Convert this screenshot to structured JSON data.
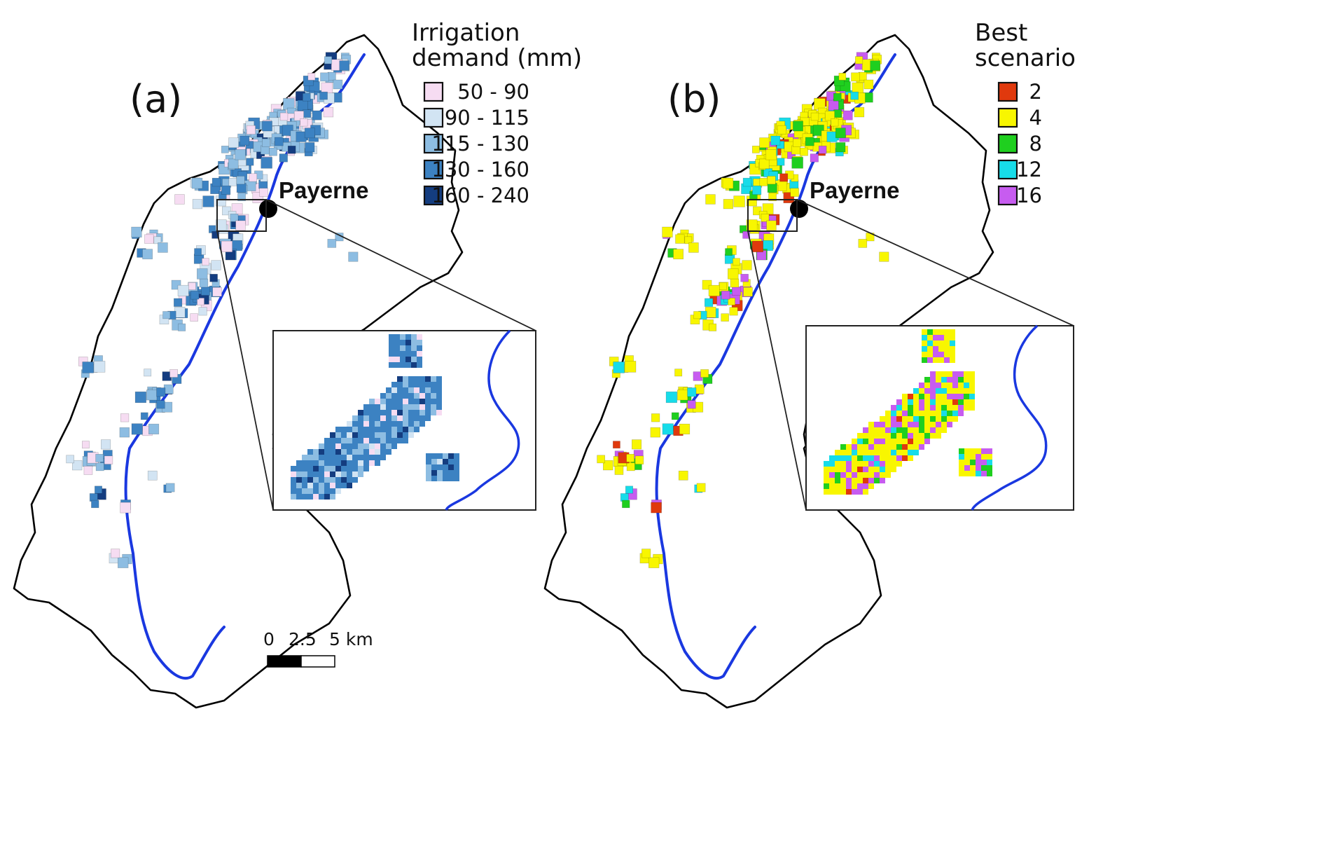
{
  "panel_a": {
    "label": "(a)",
    "legend": {
      "title_line1": "Irrigation",
      "title_line2": "demand (mm)",
      "classes": [
        {
          "label": "50 -   90",
          "color": "#f6dcf2"
        },
        {
          "label": "90 - 115",
          "color": "#d2e4f3"
        },
        {
          "label": "115 - 130",
          "color": "#8dbde2"
        },
        {
          "label": "130 - 160",
          "color": "#3c82c2"
        },
        {
          "label": "160 - 240",
          "color": "#143d80"
        }
      ]
    },
    "town": "Payerne",
    "scale_bar": {
      "ticks": [
        "0",
        "2.5",
        "5 km"
      ]
    }
  },
  "panel_b": {
    "label": "(b)",
    "legend": {
      "title_line1": "Best",
      "title_line2": "scenario",
      "classes": [
        {
          "label": "2",
          "color": "#e0390d"
        },
        {
          "label": "4",
          "color": "#f8f600"
        },
        {
          "label": "8",
          "color": "#1fcf1f"
        },
        {
          "label": "12",
          "color": "#17dce9"
        },
        {
          "label": "16",
          "color": "#c75cf0"
        }
      ]
    },
    "town": "Payerne"
  },
  "colors": {
    "river": "#1a38e0",
    "boundary": "#000000"
  }
}
